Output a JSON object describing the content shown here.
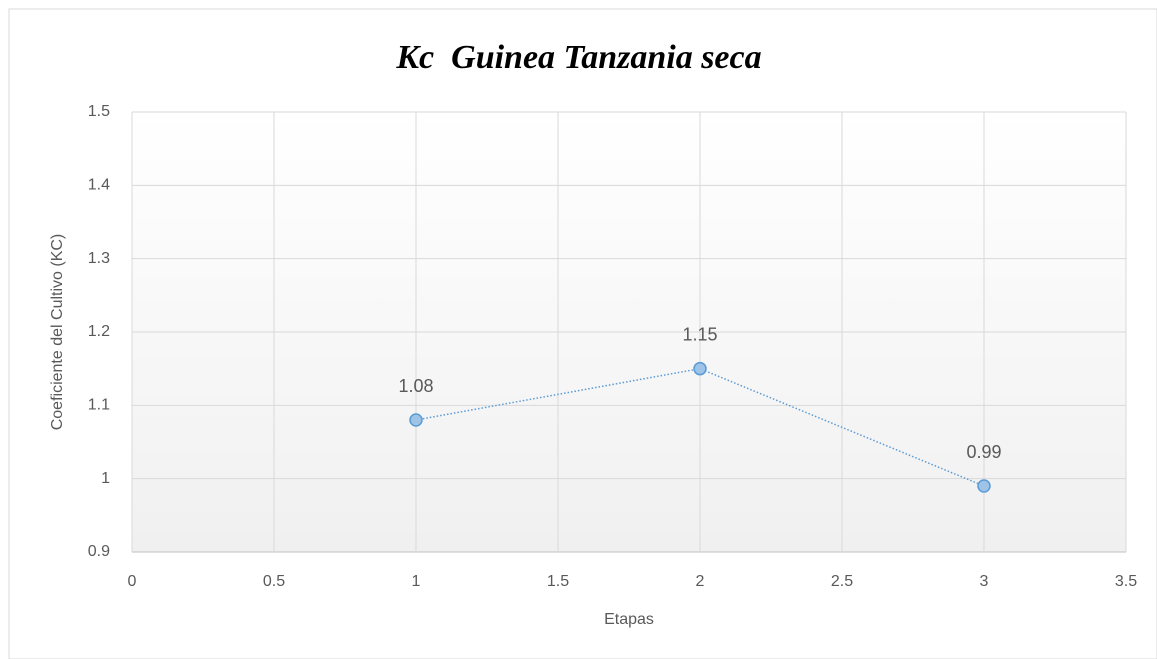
{
  "chart_data": {
    "type": "scatter-line",
    "title": "Kc  Guinea Tanzania seca",
    "x_label": "Etapas",
    "y_label": "Coeficiente del Cultivo (KC)",
    "x": [
      1,
      2,
      3
    ],
    "values": [
      1.08,
      1.15,
      0.99
    ],
    "color": "#5b9bd5",
    "marker_fill": "#9dc3e6",
    "xlim": [
      0,
      3.5
    ],
    "xticks": [
      0,
      0.5,
      1,
      1.5,
      2,
      2.5,
      3,
      3.5
    ],
    "ylim": [
      0.9,
      1.5
    ],
    "yticks": [
      0.9,
      1,
      1.1,
      1.2,
      1.3,
      1.4,
      1.5
    ],
    "grid": true,
    "data_labels": true
  }
}
